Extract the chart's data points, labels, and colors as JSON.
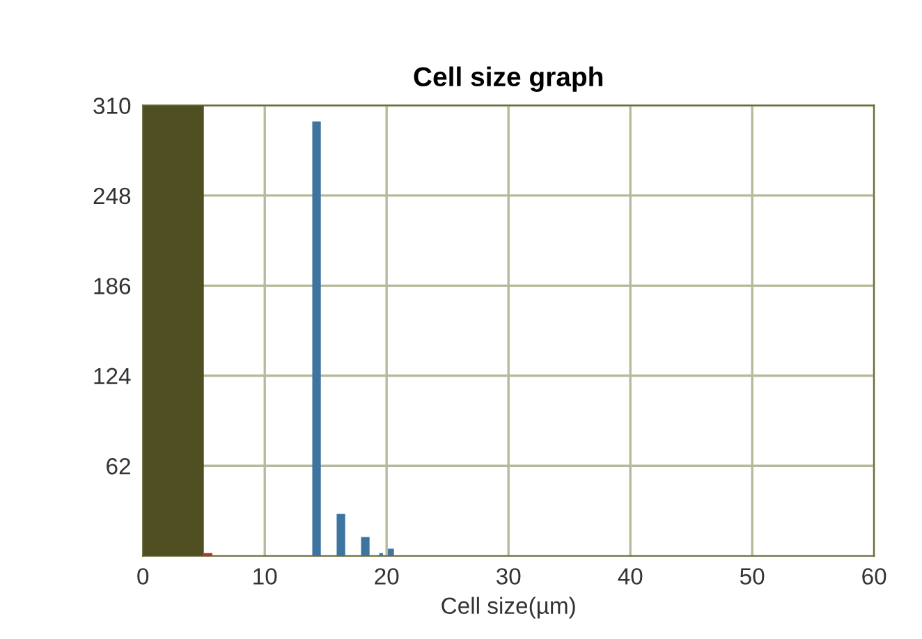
{
  "chart_data": {
    "type": "histogram",
    "title": "Cell size graph",
    "xlabel": "Cell size(µm)",
    "bins": [
      0,
      5,
      5.7,
      13.9,
      14.6,
      15.9,
      16.6,
      17.9,
      18.6,
      19.4,
      19.7,
      20.1,
      20.6
    ],
    "values": [
      310,
      2,
      0,
      299,
      0,
      29,
      0,
      13,
      0,
      2,
      0,
      5
    ],
    "colors": [
      "#4f4f22",
      "#a83a2a",
      "#3e74a0",
      "#3e74a0",
      "#3e74a0",
      "#3e74a0",
      "#3e74a0",
      "#3e74a0",
      "#3e74a0",
      "#3e74a0",
      "#3e74a0",
      "#3e74a0"
    ],
    "xlim": [
      0,
      60
    ],
    "xticks": [
      0,
      10,
      20,
      30,
      40,
      50,
      60
    ],
    "ylim": [
      0,
      310
    ],
    "yticks": [
      62,
      124,
      186,
      248,
      310
    ],
    "grid": true
  }
}
